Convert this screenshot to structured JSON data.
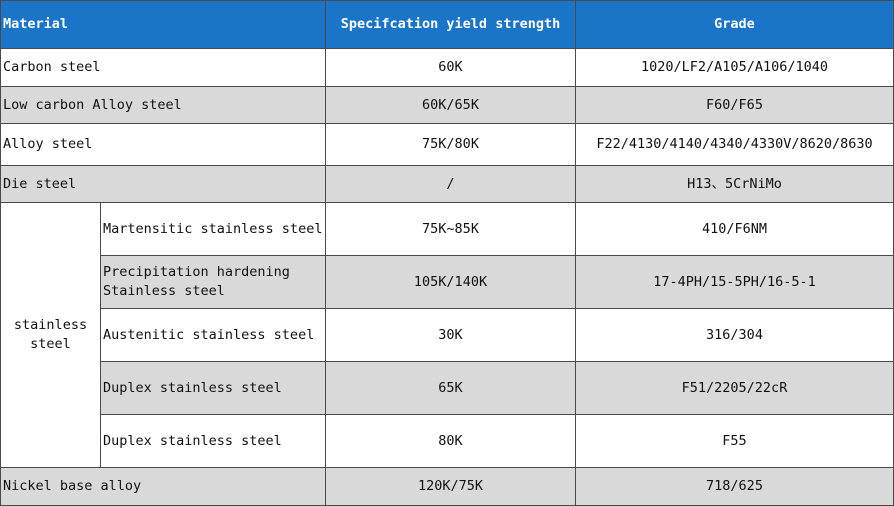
{
  "header": {
    "material": "Material",
    "yield": "Specifcation yield strength",
    "grade": "Grade"
  },
  "rows": [
    {
      "material": "Carbon steel",
      "yield": "60K",
      "grade": "1020/LF2/A105/A106/1040"
    },
    {
      "material": "Low carbon Alloy steel",
      "yield": "60K/65K",
      "grade": "F60/F65"
    },
    {
      "material": "Alloy steel",
      "yield": "75K/80K",
      "grade": "F22/4130/4140/4340/4330V/8620/8630"
    },
    {
      "material": "Die steel",
      "yield": "/",
      "grade": "H13、5CrNiMo"
    }
  ],
  "stainless": {
    "group_label": "stainless steel",
    "rows": [
      {
        "type": "Martensitic stainless steel",
        "yield": "75K~85K",
        "grade": "410/F6NM"
      },
      {
        "type": "Precipitation hardening Stainless steel",
        "yield": "105K/140K",
        "grade": "17-4PH/15-5PH/16-5-1"
      },
      {
        "type": "Austenitic stainless steel",
        "yield": "30K",
        "grade": "316/304"
      },
      {
        "type": "Duplex stainless steel",
        "yield": "65K",
        "grade": "F51/2205/22cR"
      },
      {
        "type": "Duplex stainless steel",
        "yield": "80K",
        "grade": "F55"
      }
    ]
  },
  "last_row": {
    "material": "Nickel base alloy",
    "yield": "120K/75K",
    "grade": "718/625"
  }
}
